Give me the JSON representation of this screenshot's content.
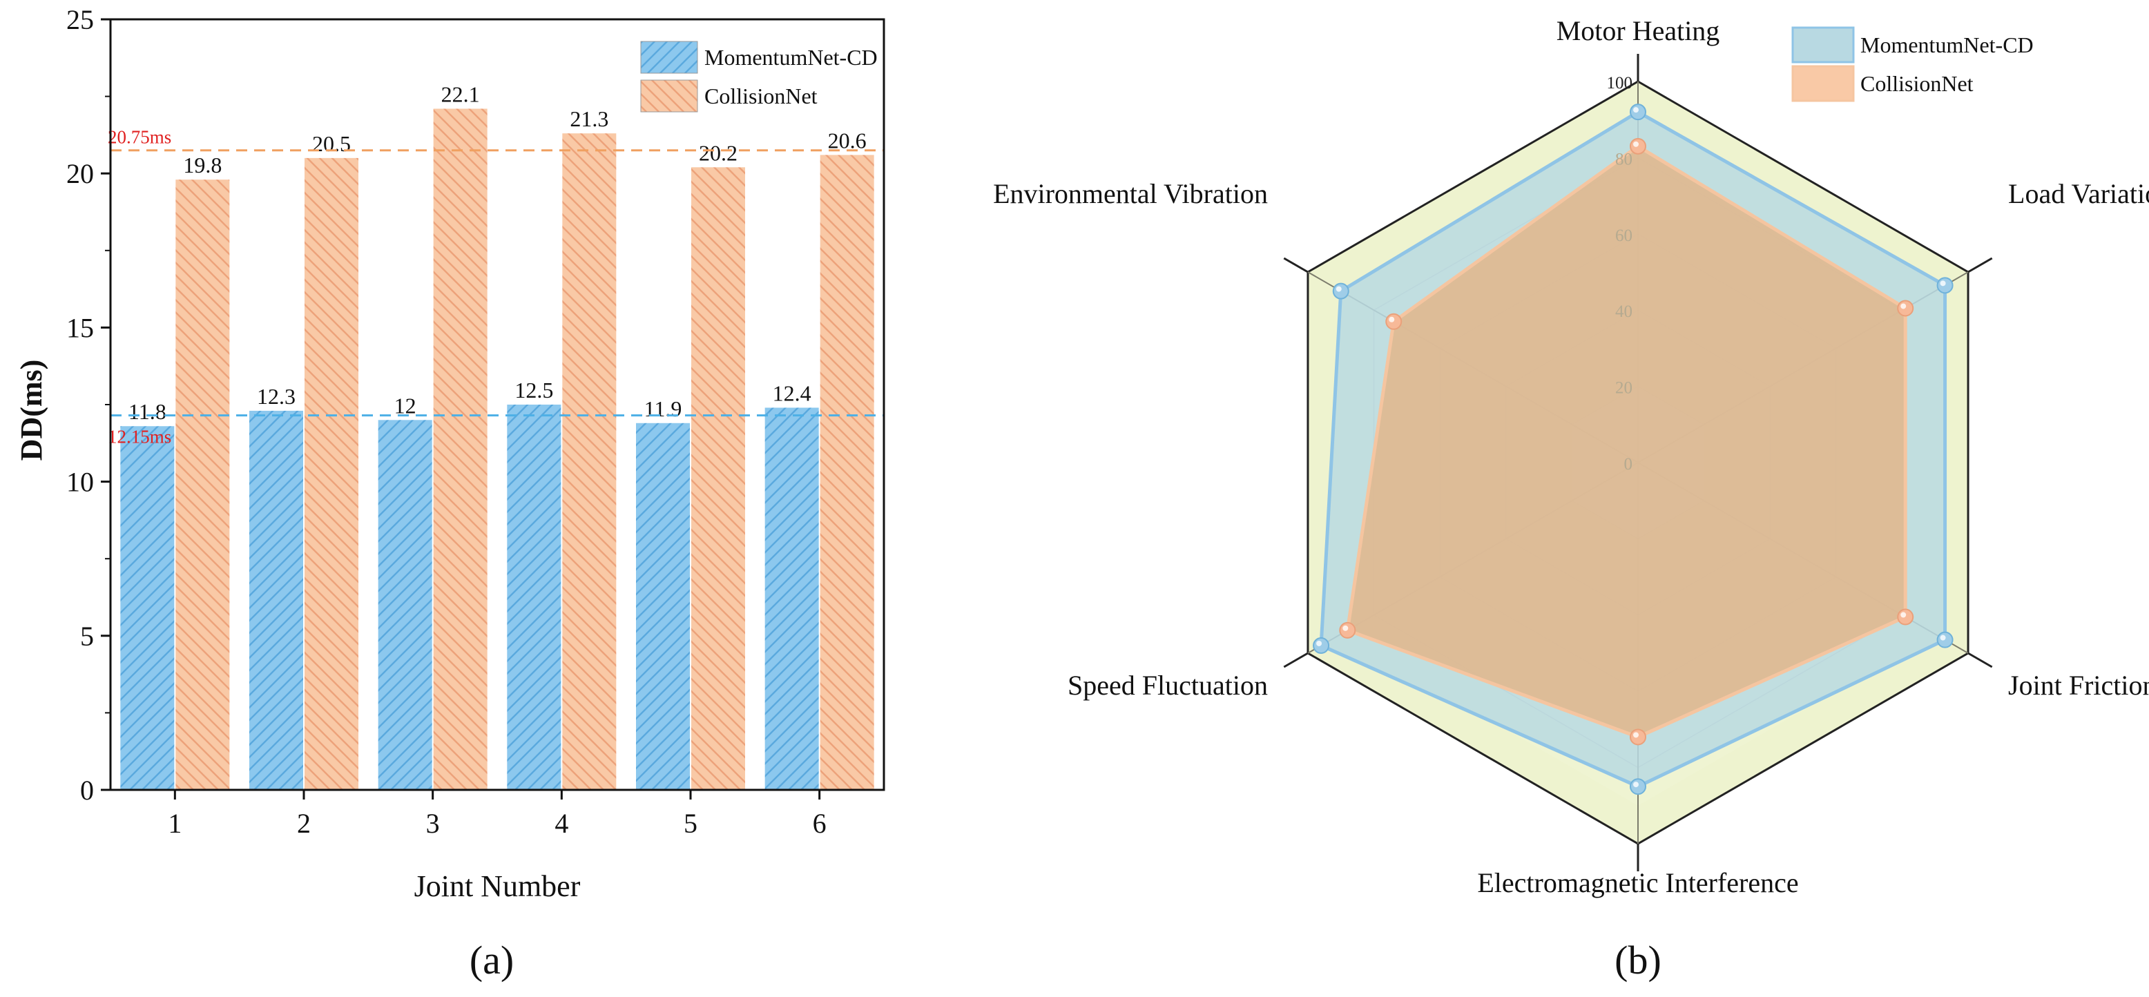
{
  "colors": {
    "momentum_fill": "#8cc8ee",
    "momentum_hatch": "#5aa9de",
    "collision_fill": "#f9c9a6",
    "collision_hatch": "#eda27a",
    "momentum_avg_line": "#4db0e6",
    "collision_avg_line": "#f0a060",
    "avg_label_color": "#e02020",
    "radar_momentum_fill": "#b8d9e2",
    "radar_momentum_stroke": "#8fc4e6",
    "radar_collision_fill": "#e0b88f",
    "radar_collision_stroke": "#f5c5a0",
    "radar_bg_outer": "#eef3cf",
    "radar_bg_inner": "#f9f9ef"
  },
  "chart_data": [
    {
      "type": "bar",
      "panel_label": "(a)",
      "xlabel": "Joint Number",
      "ylabel": "DD(ms)",
      "ylim": [
        0,
        25
      ],
      "yticks": [
        "0",
        "5",
        "10",
        "15",
        "20",
        "25"
      ],
      "categories": [
        "1",
        "2",
        "3",
        "4",
        "5",
        "6"
      ],
      "series": [
        {
          "name": "MomentumNet-CD",
          "values": [
            11.8,
            12.3,
            12,
            12.5,
            11.9,
            12.4
          ],
          "labels": [
            "11.8",
            "12.3",
            "12",
            "12.5",
            "11.9",
            "12.4"
          ]
        },
        {
          "name": "CollisionNet",
          "values": [
            19.8,
            20.5,
            22.1,
            21.3,
            20.2,
            20.6
          ],
          "labels": [
            "19.8",
            "20.5",
            "22.1",
            "21.3",
            "20.2",
            "20.6"
          ]
        }
      ],
      "reference_lines": [
        {
          "series": "MomentumNet-CD",
          "value": 12.15,
          "label": "12.15ms"
        },
        {
          "series": "CollisionNet",
          "value": 20.75,
          "label": "20.75ms"
        }
      ],
      "legend": [
        "MomentumNet-CD",
        "CollisionNet"
      ],
      "legend_position": "top-right"
    },
    {
      "type": "radar",
      "panel_label": "(b)",
      "axes": [
        "Motor Heating",
        "Load Variation",
        "Joint Friction",
        "Electromagnetic Interference",
        "Speed Fluctuation",
        "Environmental Vibration"
      ],
      "rlim": [
        0,
        100
      ],
      "rticks": [
        "0",
        "20",
        "40",
        "60",
        "80",
        "100"
      ],
      "series": [
        {
          "name": "MomentumNet-CD",
          "values": [
            92,
            93,
            93,
            85,
            96,
            90
          ]
        },
        {
          "name": "CollisionNet",
          "values": [
            83,
            81,
            81,
            72,
            88,
            74
          ]
        }
      ],
      "legend": [
        "MomentumNet-CD",
        "CollisionNet"
      ],
      "legend_position": "top-right"
    }
  ]
}
